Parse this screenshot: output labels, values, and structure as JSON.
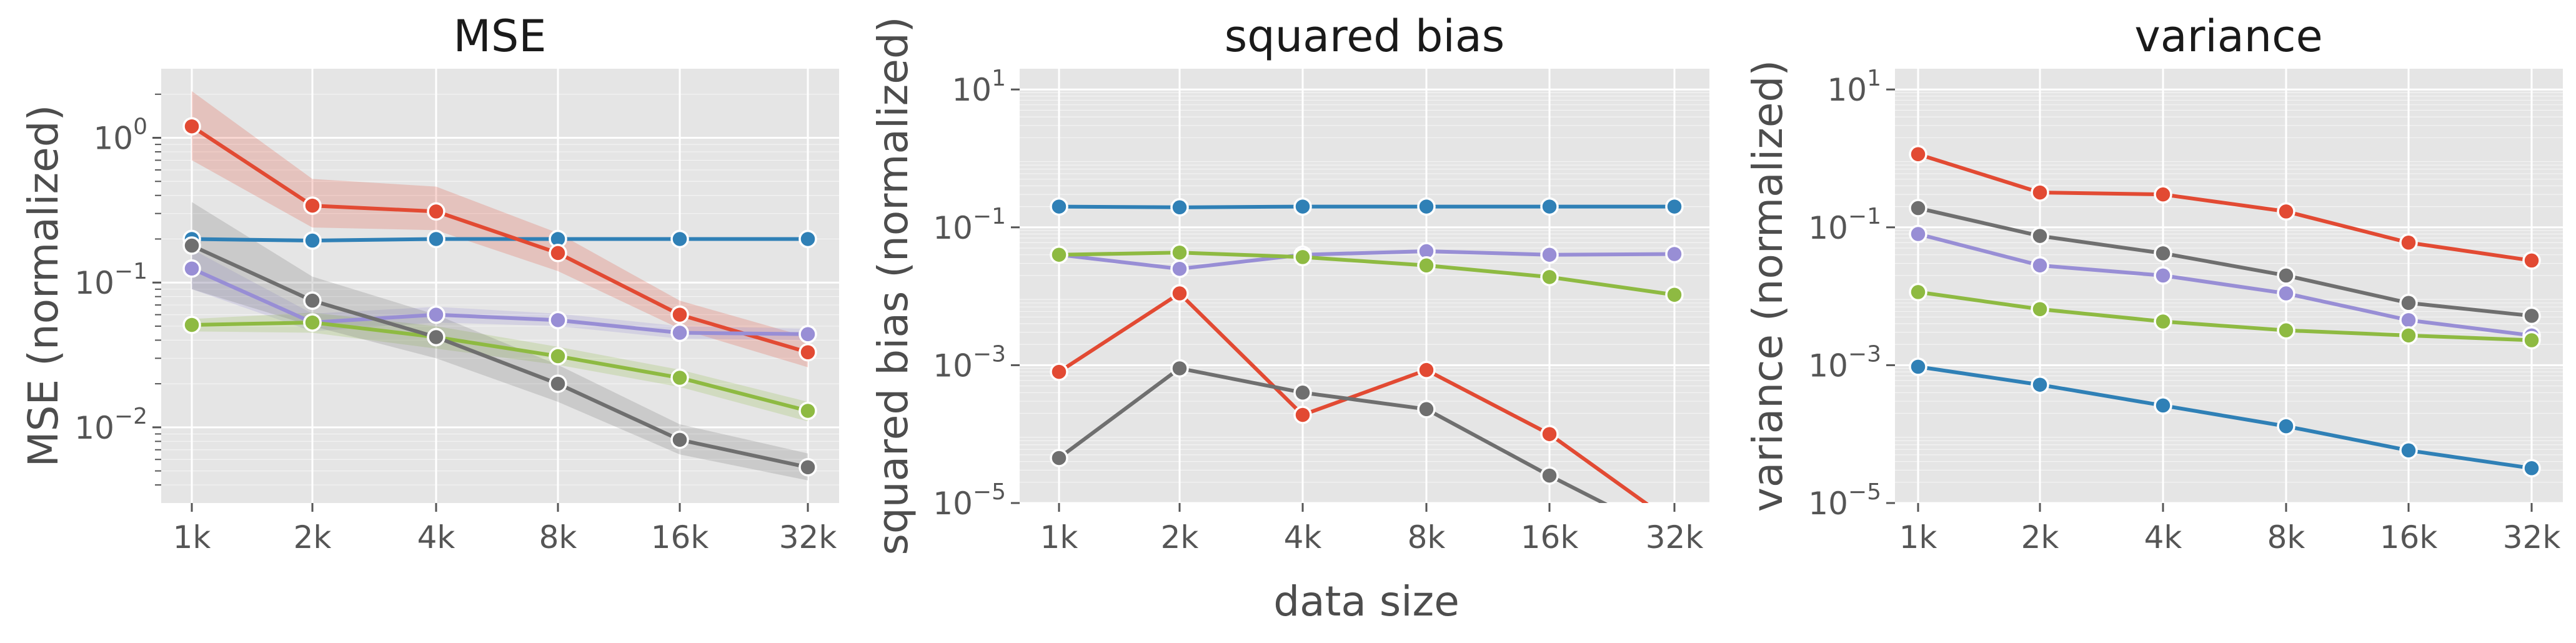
{
  "xlabel": "data size",
  "colors": {
    "blue": "#2f80b6",
    "red": "#e24a33",
    "purple": "#988ed5",
    "green": "#8eba42",
    "gray": "#6f6f6f",
    "background": "#e5e5e5"
  },
  "chart_data": [
    {
      "type": "line",
      "title": "MSE",
      "ylabel": "MSE (normalized)",
      "yscale": "log",
      "ylim": [
        0.003,
        3.0
      ],
      "yticks": [
        {
          "v": 0.01,
          "b": "10",
          "e": "−2"
        },
        {
          "v": 0.1,
          "b": "10",
          "e": "−1"
        },
        {
          "v": 1,
          "b": "10",
          "e": "0"
        }
      ],
      "categories": [
        "1k",
        "2k",
        "4k",
        "8k",
        "16k",
        "32k"
      ],
      "grid": true,
      "series": [
        {
          "color": "#2f80b6",
          "values": [
            0.2,
            0.195,
            0.2,
            0.2,
            0.2,
            0.2
          ]
        },
        {
          "color": "#e24a33",
          "values": [
            1.2,
            0.34,
            0.31,
            0.16,
            0.06,
            0.033
          ],
          "band": [
            [
              0.7,
              2.1
            ],
            [
              0.24,
              0.52
            ],
            [
              0.23,
              0.46
            ],
            [
              0.12,
              0.22
            ],
            [
              0.048,
              0.075
            ],
            [
              0.026,
              0.042
            ]
          ]
        },
        {
          "color": "#988ed5",
          "values": [
            0.125,
            0.053,
            0.06,
            0.055,
            0.045,
            0.044
          ],
          "band": [
            [
              0.09,
              0.17
            ],
            [
              0.046,
              0.061
            ],
            [
              0.053,
              0.068
            ],
            [
              0.05,
              0.061
            ],
            [
              0.041,
              0.05
            ],
            [
              0.04,
              0.048
            ]
          ]
        },
        {
          "color": "#8eba42",
          "values": [
            0.051,
            0.053,
            0.042,
            0.031,
            0.022,
            0.013
          ],
          "band": [
            [
              0.046,
              0.056
            ],
            [
              0.045,
              0.062
            ],
            [
              0.035,
              0.05
            ],
            [
              0.027,
              0.036
            ],
            [
              0.019,
              0.025
            ],
            [
              0.011,
              0.015
            ]
          ]
        },
        {
          "color": "#6f6f6f",
          "values": [
            0.18,
            0.075,
            0.042,
            0.02,
            0.0082,
            0.0053
          ],
          "band": [
            [
              0.09,
              0.36
            ],
            [
              0.05,
              0.11
            ],
            [
              0.03,
              0.06
            ],
            [
              0.015,
              0.027
            ],
            [
              0.0065,
              0.0105
            ],
            [
              0.0043,
              0.0066
            ]
          ]
        }
      ]
    },
    {
      "type": "line",
      "title": "squared bias",
      "ylabel": "squared bias (normalized)",
      "yscale": "log",
      "ylim": [
        1e-05,
        20
      ],
      "yticks": [
        {
          "v": 1e-05,
          "b": "10",
          "e": "−5"
        },
        {
          "v": 0.001,
          "b": "10",
          "e": "−3"
        },
        {
          "v": 0.1,
          "b": "10",
          "e": "−1"
        },
        {
          "v": 10,
          "b": "10",
          "e": "1"
        }
      ],
      "categories": [
        "1k",
        "2k",
        "4k",
        "8k",
        "16k",
        "32k"
      ],
      "grid": true,
      "series": [
        {
          "color": "#2f80b6",
          "values": [
            0.2,
            0.195,
            0.2,
            0.2,
            0.2,
            0.2
          ]
        },
        {
          "color": "#e24a33",
          "values": [
            0.0008,
            0.011,
            0.00019,
            0.00085,
            0.0001,
            5e-06
          ]
        },
        {
          "color": "#988ed5",
          "values": [
            0.04,
            0.025,
            0.04,
            0.045,
            0.04,
            0.041
          ]
        },
        {
          "color": "#8eba42",
          "values": [
            0.04,
            0.043,
            0.037,
            0.028,
            0.019,
            0.0105
          ]
        },
        {
          "color": "#6f6f6f",
          "values": [
            4.5e-05,
            0.0009,
            0.0004,
            0.00023,
            2.5e-05,
            3e-06
          ]
        }
      ]
    },
    {
      "type": "line",
      "title": "variance",
      "ylabel": "variance (normalized)",
      "yscale": "log",
      "ylim": [
        1e-05,
        20
      ],
      "yticks": [
        {
          "v": 1e-05,
          "b": "10",
          "e": "−5"
        },
        {
          "v": 0.001,
          "b": "10",
          "e": "−3"
        },
        {
          "v": 0.1,
          "b": "10",
          "e": "−1"
        },
        {
          "v": 10,
          "b": "10",
          "e": "1"
        }
      ],
      "categories": [
        "1k",
        "2k",
        "4k",
        "8k",
        "16k",
        "32k"
      ],
      "grid": true,
      "series": [
        {
          "color": "#2f80b6",
          "values": [
            0.00095,
            0.00052,
            0.00026,
            0.00013,
            5.8e-05,
            3.2e-05
          ]
        },
        {
          "color": "#e24a33",
          "values": [
            1.15,
            0.32,
            0.3,
            0.17,
            0.06,
            0.033
          ]
        },
        {
          "color": "#988ed5",
          "values": [
            0.08,
            0.028,
            0.02,
            0.011,
            0.0045,
            0.0027
          ]
        },
        {
          "color": "#8eba42",
          "values": [
            0.0115,
            0.0065,
            0.0043,
            0.0032,
            0.0027,
            0.0023
          ]
        },
        {
          "color": "#6f6f6f",
          "values": [
            0.19,
            0.075,
            0.042,
            0.02,
            0.008,
            0.0052
          ]
        }
      ]
    }
  ]
}
